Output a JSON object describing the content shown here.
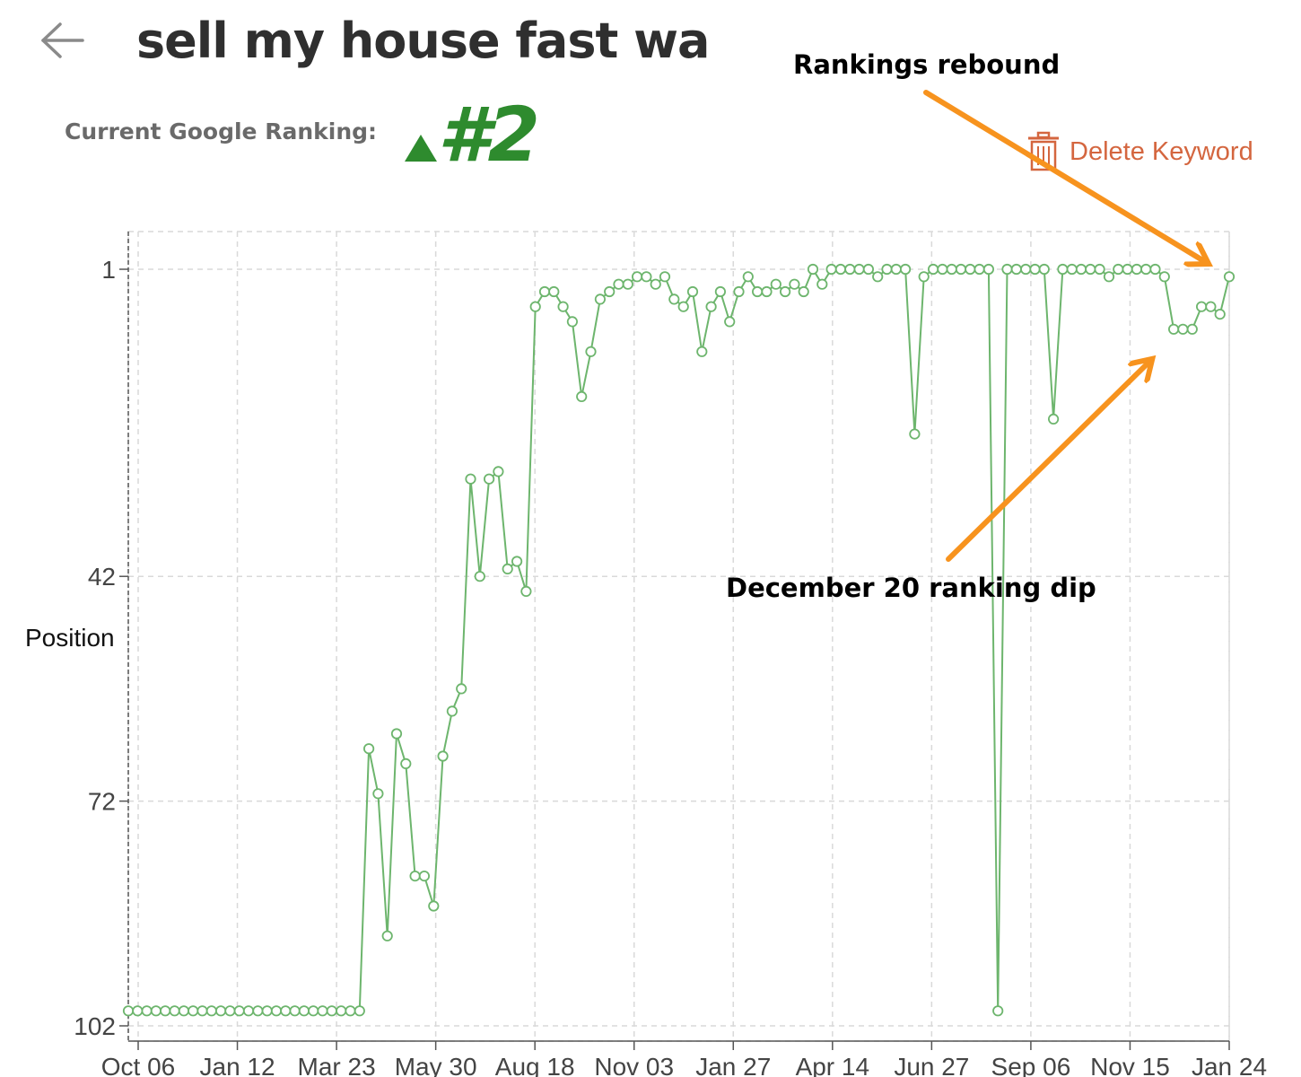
{
  "header": {
    "title": "sell my house fast wa",
    "ranking_label": "Current Google Ranking:",
    "ranking_value": "#2",
    "ranking_trend_icon": "triangle-up-icon",
    "back_icon": "arrow-left-icon"
  },
  "actions": {
    "delete_label": "Delete Keyword",
    "delete_icon": "trash-icon"
  },
  "colors": {
    "series": "#6db56d",
    "rank_green": "#2e8b2e",
    "delete_red": "#d4663f",
    "annotation_orange": "#f7931e"
  },
  "chart_data": {
    "type": "line",
    "ylabel": "Position",
    "y_inverted": true,
    "ylim": [
      1,
      102
    ],
    "yticks": [
      1,
      42,
      72,
      102
    ],
    "xtick_labels": [
      "Oct 06",
      "Jan 12",
      "Mar 23",
      "May 30",
      "Aug 18",
      "Nov 03",
      "Jan 27",
      "Apr 14",
      "Jun 27",
      "Sep 06",
      "Nov 15",
      "Jan 24"
    ],
    "grid": true,
    "series": [
      {
        "values": [
          100,
          100,
          100,
          100,
          100,
          100,
          100,
          100,
          100,
          100,
          100,
          100,
          100,
          100,
          100,
          100,
          100,
          100,
          100,
          100,
          100,
          100,
          100,
          100,
          100,
          100,
          65,
          71,
          90,
          63,
          67,
          82,
          82,
          86,
          66,
          60,
          57,
          29,
          42,
          29,
          28,
          41,
          40,
          44,
          6,
          4,
          4,
          6,
          8,
          18,
          12,
          5,
          4,
          3,
          3,
          2,
          2,
          3,
          2,
          5,
          6,
          4,
          12,
          6,
          4,
          8,
          4,
          2,
          4,
          4,
          3,
          4,
          3,
          4,
          1,
          3,
          1,
          1,
          1,
          1,
          1,
          2,
          1,
          1,
          1,
          23,
          2,
          1,
          1,
          1,
          1,
          1,
          1,
          1,
          100,
          1,
          1,
          1,
          1,
          1,
          21,
          1,
          1,
          1,
          1,
          1,
          2,
          1,
          1,
          1,
          1,
          1,
          2,
          9,
          9,
          9,
          6,
          6,
          7,
          2
        ]
      }
    ]
  },
  "annotations": {
    "rebound": "Rankings rebound",
    "dip": "December 20 ranking dip"
  }
}
